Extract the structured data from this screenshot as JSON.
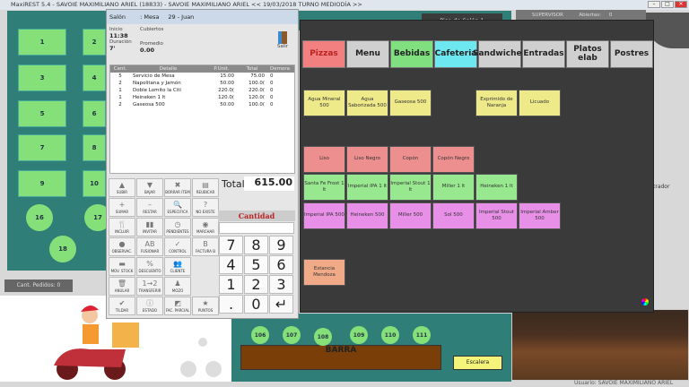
{
  "window": {
    "title": "MaxiREST 5.4 - SAVOIE MAXIMILIANO ARIEL (18833) - SAVOIE MAXIMILIANO ARIEL      << 19/03/2018 TURNO MEDIODÍA  >>",
    "min": "–",
    "max": "□",
    "close": "✕"
  },
  "salon": {
    "tables": [
      "1",
      "2",
      "3",
      "4",
      "5",
      "6",
      "7",
      "8",
      "9",
      "10"
    ],
    "round_tables": [
      "16",
      "17",
      "18"
    ],
    "floor_label": "Piso de Salón 1",
    "orders_count": "Cant. Pedidos: 0"
  },
  "supervisor": {
    "role": "SUPERVISOR",
    "open_label": "Abiertas:",
    "open_count": "0"
  },
  "order": {
    "salon_label": "Salón",
    "mesa_label": ": Mesa",
    "mesa_value": "29 - Juan",
    "inicio_label": "Inicio",
    "inicio": "11:38",
    "duracion_label": "Duración",
    "duracion": "7'",
    "cubiertos_label": "Cubiertos",
    "promedio_label": "Promedio",
    "promedio": "0.00",
    "exit_label": "Salir",
    "columns": [
      "Cant.",
      "Detalle",
      "P.Unit.",
      "Total",
      "Demora"
    ],
    "rows": [
      [
        "5",
        "Servicio de Mesa",
        "15.00",
        "75.00",
        "0"
      ],
      [
        "2",
        "Napolitana y Jamón",
        "50.00",
        "100.0(",
        "0"
      ],
      [
        "1",
        "Doble Lomito la Citi",
        "220.0(",
        "220.0(",
        "0"
      ],
      [
        "1",
        "Heineken 1 lt",
        "120.0(",
        "120.0(",
        "0"
      ],
      [
        "2",
        "Gaseosa 500",
        "50.00",
        "100.0(",
        "0"
      ]
    ],
    "total_label": "Total",
    "total": "615.00",
    "cantidad_label": "Cantidad",
    "functions": [
      [
        "▲",
        "SUBIR"
      ],
      [
        "▼",
        "BAJAR"
      ],
      [
        "✖",
        "BORRAR ITEM"
      ],
      [
        "▤",
        "REUBICAR"
      ],
      [
        "+",
        "SUMAR"
      ],
      [
        "–",
        "RESTAR"
      ],
      [
        "🔍",
        "ESPECIFICA"
      ],
      [
        "?",
        "NO EXISTE"
      ],
      [
        "🍴",
        "INCLUIR"
      ],
      [
        "▮▮",
        "INVITAR"
      ],
      [
        "◷",
        "PENDIENTES"
      ],
      [
        "◉",
        "MARCHAR"
      ],
      [
        "●",
        "OBSERVAC."
      ],
      [
        "AB",
        "FUSIONAR"
      ],
      [
        "✓",
        "CONTROL"
      ],
      [
        "B",
        "FACTURA B"
      ],
      [
        "▬",
        "MOV. STOCK"
      ],
      [
        "%",
        "DESCUENTO"
      ],
      [
        "👥",
        "CLIENTE"
      ],
      [
        "🗑",
        "ANULAR"
      ],
      [
        "1→2",
        "TRANSFERIR"
      ],
      [
        "♟",
        "MOZO"
      ],
      [
        "✔",
        "TILDAR"
      ],
      [
        "ⓘ",
        "ESTADO"
      ],
      [
        "◩",
        "FAC. PARCIAL"
      ],
      [
        "★",
        "PUNTOS"
      ]
    ],
    "keys": [
      "7",
      "8",
      "9",
      "4",
      "5",
      "6",
      "1",
      "2",
      "3",
      ".",
      "0",
      "↵"
    ]
  },
  "menu": {
    "categories": [
      {
        "label": "Pizzas",
        "color": "#f28080"
      },
      {
        "label": "Menu",
        "color": "#d0d0d0"
      },
      {
        "label": "Bebidas",
        "color": "#80e080"
      },
      {
        "label": "Cafeteria",
        "color": "#6ee8f0"
      },
      {
        "label": "Sandwiches",
        "color": "#d0d0d0"
      },
      {
        "label": "Entradas",
        "color": "#d0d0d0"
      },
      {
        "label": "Platos elab",
        "color": "#d0d0d0"
      },
      {
        "label": "Postres",
        "color": "#d0d0d0"
      }
    ],
    "products": [
      {
        "label": "Agua Mineral 500",
        "color": "#eeea8a",
        "col": 0,
        "row": 0
      },
      {
        "label": "Agua Saborizada 500",
        "color": "#eeea8a",
        "col": 1,
        "row": 0
      },
      {
        "label": "Gaseosa 500",
        "color": "#eeea8a",
        "col": 2,
        "row": 0
      },
      {
        "label": "Exprimido de Naranja",
        "color": "#eeea8a",
        "col": 4,
        "row": 0
      },
      {
        "label": "Licuado",
        "color": "#eeea8a",
        "col": 5,
        "row": 0
      },
      {
        "label": "Liso",
        "color": "#ee8f8f",
        "col": 0,
        "row": 1
      },
      {
        "label": "Liso Negro",
        "color": "#ee8f8f",
        "col": 1,
        "row": 1
      },
      {
        "label": "Copón",
        "color": "#ee8f8f",
        "col": 2,
        "row": 1
      },
      {
        "label": "Copón Negro",
        "color": "#ee8f8f",
        "col": 3,
        "row": 1
      },
      {
        "label": "Santa Fe Frost 1 lt",
        "color": "#98e890",
        "col": 0,
        "row": 2
      },
      {
        "label": "Imperial IPA 1 lt",
        "color": "#98e890",
        "col": 1,
        "row": 2
      },
      {
        "label": "Imperial Stout 1 lt",
        "color": "#98e890",
        "col": 2,
        "row": 2
      },
      {
        "label": "Miller 1 lt",
        "color": "#98e890",
        "col": 3,
        "row": 2
      },
      {
        "label": "Heineken 1 lt",
        "color": "#98e890",
        "col": 4,
        "row": 2
      },
      {
        "label": "Imperial IPA 500",
        "color": "#e890e8",
        "col": 0,
        "row": 3
      },
      {
        "label": "Heineken 500",
        "color": "#e890e8",
        "col": 1,
        "row": 3
      },
      {
        "label": "Miller 500",
        "color": "#e890e8",
        "col": 2,
        "row": 3
      },
      {
        "label": "Sol 500",
        "color": "#e890e8",
        "col": 3,
        "row": 3
      },
      {
        "label": "Imperial Stout 500",
        "color": "#e890e8",
        "col": 4,
        "row": 3
      },
      {
        "label": "Imperial Amber 500",
        "color": "#e890e8",
        "col": 5,
        "row": 3
      },
      {
        "label": "Estancia Mendoza",
        "color": "#f0aa88",
        "col": 0,
        "row": 5
      }
    ]
  },
  "barra": {
    "seats": [
      "106",
      "107",
      "108",
      "109",
      "110",
      "111"
    ],
    "label": "BARRA",
    "stairs": "Escalera"
  },
  "status": {
    "user": "Usuario: SAVOIE MAXIMILIANO ARIEL",
    "side_label": "trador"
  }
}
